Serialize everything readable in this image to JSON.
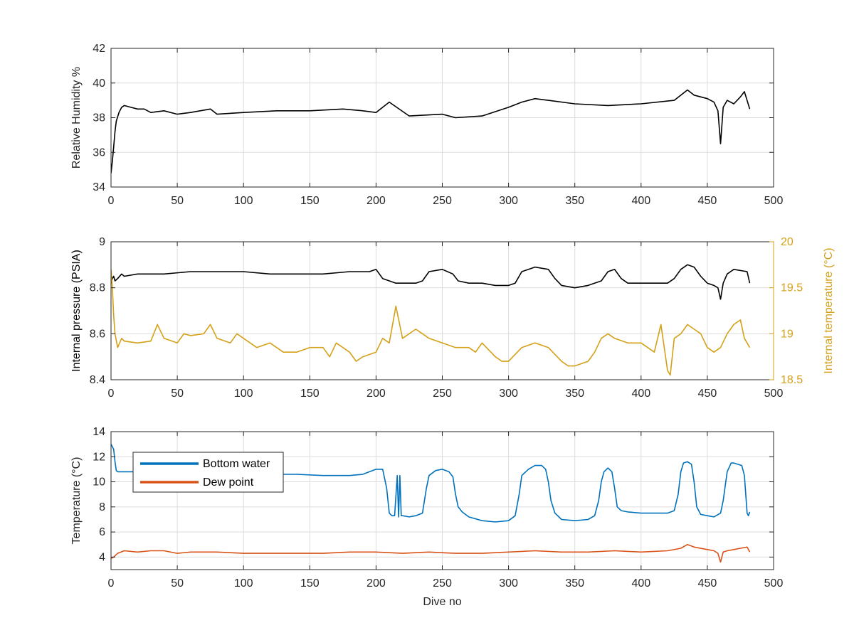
{
  "colors": {
    "black_series": "#000000",
    "pressure": "#000000",
    "internal_temp": "#D4A017",
    "bottom_water": "#0072BD",
    "dew_point": "#D95319",
    "grid": "#DCDCDC",
    "axis": "#262626"
  },
  "chart_data": [
    {
      "type": "line",
      "ylabel": "Relative Humidity %",
      "xlabel": "",
      "xlim": [
        0,
        500
      ],
      "ylim": [
        34,
        42
      ],
      "xticks": [
        0,
        50,
        100,
        150,
        200,
        250,
        300,
        350,
        400,
        450,
        500
      ],
      "yticks": [
        34,
        36,
        38,
        40,
        42
      ],
      "grid": true,
      "series": [
        {
          "name": "",
          "x": [
            0,
            1,
            2,
            3,
            4,
            6,
            8,
            10,
            15,
            20,
            25,
            30,
            40,
            50,
            60,
            75,
            80,
            100,
            125,
            150,
            175,
            190,
            200,
            205,
            210,
            225,
            250,
            260,
            280,
            300,
            310,
            320,
            330,
            350,
            375,
            400,
            425,
            435,
            440,
            450,
            455,
            458,
            460,
            462,
            465,
            470,
            475,
            478,
            482
          ],
          "values": [
            34.8,
            35.5,
            36.3,
            37.2,
            37.8,
            38.3,
            38.6,
            38.7,
            38.6,
            38.5,
            38.5,
            38.3,
            38.4,
            38.2,
            38.3,
            38.5,
            38.2,
            38.3,
            38.4,
            38.4,
            38.5,
            38.4,
            38.3,
            38.6,
            38.9,
            38.1,
            38.2,
            38.0,
            38.1,
            38.6,
            38.9,
            39.1,
            39.0,
            38.8,
            38.7,
            38.8,
            39.0,
            39.6,
            39.3,
            39.1,
            38.9,
            38.4,
            36.5,
            38.6,
            39.0,
            38.8,
            39.2,
            39.5,
            38.5
          ]
        }
      ]
    },
    {
      "type": "line",
      "ylabel": "Internal pressure (PSIA)",
      "y2label": "Internal temperature (°C)",
      "xlim": [
        0,
        500
      ],
      "ylim": [
        8.4,
        9
      ],
      "y2lim": [
        18.5,
        20
      ],
      "xticks": [
        0,
        50,
        100,
        150,
        200,
        250,
        300,
        350,
        400,
        450,
        500
      ],
      "yticks": [
        8.4,
        8.6,
        8.8,
        9
      ],
      "y2ticks": [
        18.5,
        19,
        19.5,
        20
      ],
      "y2ticklabels": [
        "18.5",
        "19",
        "19.5",
        "20"
      ],
      "grid": true,
      "series": [
        {
          "name": "",
          "axis": "left",
          "x": [
            0,
            1,
            2,
            3,
            5,
            8,
            10,
            20,
            40,
            60,
            80,
            100,
            120,
            140,
            160,
            180,
            195,
            200,
            205,
            210,
            215,
            230,
            235,
            240,
            250,
            258,
            262,
            270,
            280,
            290,
            300,
            305,
            310,
            320,
            330,
            335,
            340,
            350,
            360,
            370,
            375,
            380,
            385,
            390,
            400,
            420,
            425,
            430,
            435,
            440,
            445,
            450,
            455,
            458,
            460,
            462,
            465,
            470,
            480,
            482
          ],
          "values": [
            8.82,
            8.84,
            8.85,
            8.83,
            8.84,
            8.86,
            8.85,
            8.86,
            8.86,
            8.87,
            8.87,
            8.87,
            8.86,
            8.86,
            8.86,
            8.87,
            8.87,
            8.88,
            8.84,
            8.83,
            8.82,
            8.82,
            8.83,
            8.87,
            8.88,
            8.86,
            8.83,
            8.82,
            8.82,
            8.81,
            8.81,
            8.82,
            8.87,
            8.89,
            8.88,
            8.84,
            8.81,
            8.8,
            8.81,
            8.83,
            8.87,
            8.88,
            8.84,
            8.82,
            8.82,
            8.82,
            8.84,
            8.88,
            8.9,
            8.89,
            8.85,
            8.82,
            8.81,
            8.8,
            8.75,
            8.82,
            8.86,
            8.88,
            8.87,
            8.82
          ]
        },
        {
          "name": "",
          "axis": "right",
          "x": [
            0,
            1,
            2,
            3,
            5,
            8,
            10,
            20,
            30,
            35,
            40,
            50,
            55,
            60,
            70,
            75,
            80,
            90,
            95,
            100,
            110,
            120,
            130,
            140,
            150,
            160,
            165,
            170,
            180,
            185,
            190,
            200,
            205,
            210,
            215,
            220,
            230,
            235,
            240,
            250,
            260,
            270,
            275,
            280,
            290,
            295,
            300,
            310,
            320,
            330,
            340,
            345,
            350,
            360,
            365,
            370,
            375,
            380,
            390,
            400,
            405,
            410,
            415,
            420,
            422,
            425,
            430,
            435,
            440,
            445,
            450,
            455,
            460,
            465,
            470,
            475,
            478,
            482
          ],
          "values": [
            19.7,
            19.5,
            19.2,
            19.0,
            18.85,
            18.95,
            18.92,
            18.9,
            18.92,
            19.1,
            18.95,
            18.9,
            19.0,
            18.98,
            19.0,
            19.1,
            18.95,
            18.9,
            19.0,
            18.95,
            18.85,
            18.9,
            18.8,
            18.8,
            18.85,
            18.85,
            18.75,
            18.9,
            18.8,
            18.7,
            18.75,
            18.8,
            18.95,
            18.9,
            19.3,
            18.95,
            19.05,
            19.0,
            18.95,
            18.9,
            18.85,
            18.85,
            18.8,
            18.9,
            18.75,
            18.7,
            18.7,
            18.85,
            18.9,
            18.85,
            18.7,
            18.65,
            18.65,
            18.7,
            18.8,
            18.95,
            19.0,
            18.95,
            18.9,
            18.9,
            18.85,
            18.8,
            19.1,
            18.6,
            18.55,
            18.95,
            19.0,
            19.1,
            19.05,
            19.0,
            18.85,
            18.8,
            18.85,
            19.0,
            19.1,
            19.15,
            18.95,
            18.85
          ]
        }
      ]
    },
    {
      "type": "line",
      "ylabel": "Temperature (°C)",
      "xlabel": "Dive no",
      "xlim": [
        0,
        500
      ],
      "ylim": [
        3,
        14
      ],
      "xticks": [
        0,
        50,
        100,
        150,
        200,
        250,
        300,
        350,
        400,
        450,
        500
      ],
      "yticks": [
        4,
        6,
        8,
        10,
        12,
        14
      ],
      "grid": true,
      "legend": "top-left",
      "series": [
        {
          "name": "Bottom water",
          "x": [
            0,
            2,
            3,
            4,
            5,
            8,
            10,
            20,
            40,
            60,
            80,
            100,
            120,
            140,
            160,
            180,
            190,
            195,
            200,
            205,
            208,
            210,
            212,
            214,
            216,
            217,
            218,
            219,
            220,
            225,
            230,
            235,
            238,
            240,
            245,
            250,
            255,
            258,
            260,
            262,
            265,
            270,
            280,
            290,
            300,
            305,
            308,
            310,
            315,
            320,
            325,
            328,
            330,
            332,
            335,
            340,
            350,
            360,
            365,
            368,
            370,
            372,
            375,
            378,
            380,
            382,
            385,
            390,
            400,
            410,
            420,
            425,
            428,
            430,
            432,
            435,
            438,
            440,
            442,
            445,
            450,
            455,
            460,
            462,
            465,
            468,
            470,
            473,
            476,
            478,
            480,
            481,
            482
          ],
          "values": [
            13.0,
            12.6,
            11.6,
            10.9,
            10.8,
            10.8,
            10.8,
            10.8,
            10.8,
            10.7,
            10.7,
            10.7,
            10.6,
            10.6,
            10.5,
            10.5,
            10.6,
            10.8,
            11.0,
            11.0,
            9.5,
            7.5,
            7.3,
            7.3,
            10.5,
            7.2,
            10.5,
            7.3,
            7.3,
            7.2,
            7.3,
            7.5,
            9.5,
            10.5,
            10.9,
            11.0,
            10.8,
            10.4,
            9.0,
            8.0,
            7.6,
            7.2,
            6.9,
            6.8,
            6.9,
            7.3,
            9.0,
            10.5,
            11.0,
            11.3,
            11.3,
            11.0,
            10.0,
            8.5,
            7.5,
            7.0,
            6.9,
            7.0,
            7.3,
            8.5,
            10.0,
            10.8,
            11.1,
            10.8,
            9.5,
            8.0,
            7.7,
            7.6,
            7.5,
            7.5,
            7.5,
            7.7,
            9.0,
            10.8,
            11.5,
            11.6,
            11.4,
            10.0,
            8.0,
            7.4,
            7.3,
            7.2,
            7.5,
            8.5,
            10.8,
            11.5,
            11.5,
            11.4,
            11.3,
            10.5,
            7.5,
            7.3,
            7.6
          ]
        },
        {
          "name": "Dew point",
          "x": [
            0,
            2,
            5,
            10,
            20,
            30,
            40,
            50,
            60,
            80,
            100,
            120,
            140,
            160,
            180,
            200,
            220,
            240,
            260,
            280,
            300,
            320,
            340,
            350,
            360,
            380,
            400,
            420,
            430,
            435,
            440,
            450,
            455,
            458,
            460,
            462,
            465,
            470,
            475,
            480,
            482
          ],
          "values": [
            3.9,
            4.0,
            4.3,
            4.5,
            4.4,
            4.5,
            4.5,
            4.3,
            4.4,
            4.4,
            4.3,
            4.3,
            4.3,
            4.3,
            4.4,
            4.4,
            4.3,
            4.4,
            4.3,
            4.3,
            4.4,
            4.5,
            4.4,
            4.4,
            4.4,
            4.5,
            4.4,
            4.5,
            4.7,
            5.0,
            4.8,
            4.6,
            4.5,
            4.3,
            3.6,
            4.4,
            4.5,
            4.6,
            4.7,
            4.8,
            4.4
          ]
        }
      ]
    }
  ]
}
